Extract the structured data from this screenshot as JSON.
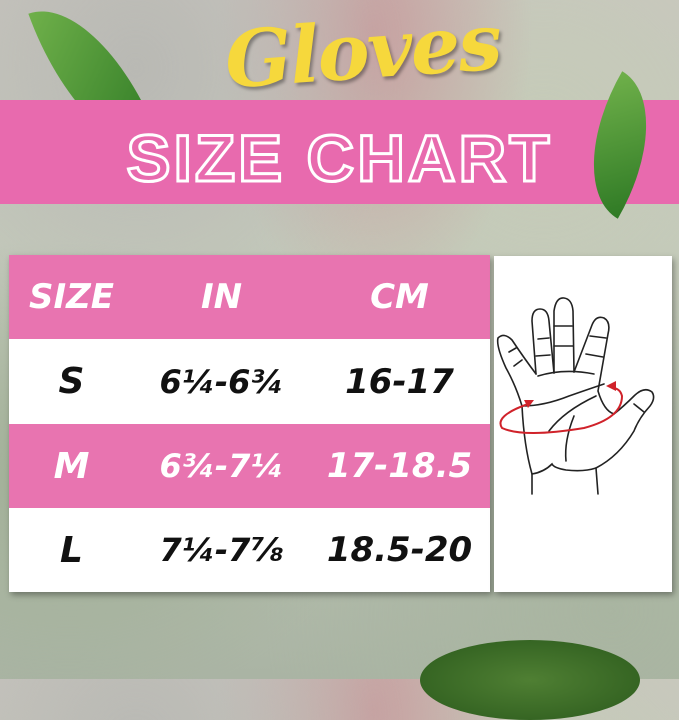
{
  "header": {
    "script_title": "Gloves",
    "title": "SIZE CHART"
  },
  "colors": {
    "banner": "#e86aae",
    "pink_row": "#e874b0",
    "script_title": "#f6d83c",
    "arrow": "#d0222a"
  },
  "table": {
    "columns": [
      "SIZE",
      "IN",
      "CM"
    ],
    "rows": [
      {
        "size": "S",
        "in": "6¼-6¾",
        "cm": "16-17"
      },
      {
        "size": "M",
        "in": "6¾-7¼",
        "cm": "17-18.5"
      },
      {
        "size": "L",
        "in": "7¼-7⅞",
        "cm": "18.5-20"
      }
    ]
  },
  "illustration": {
    "icon": "hand-measure-icon"
  }
}
